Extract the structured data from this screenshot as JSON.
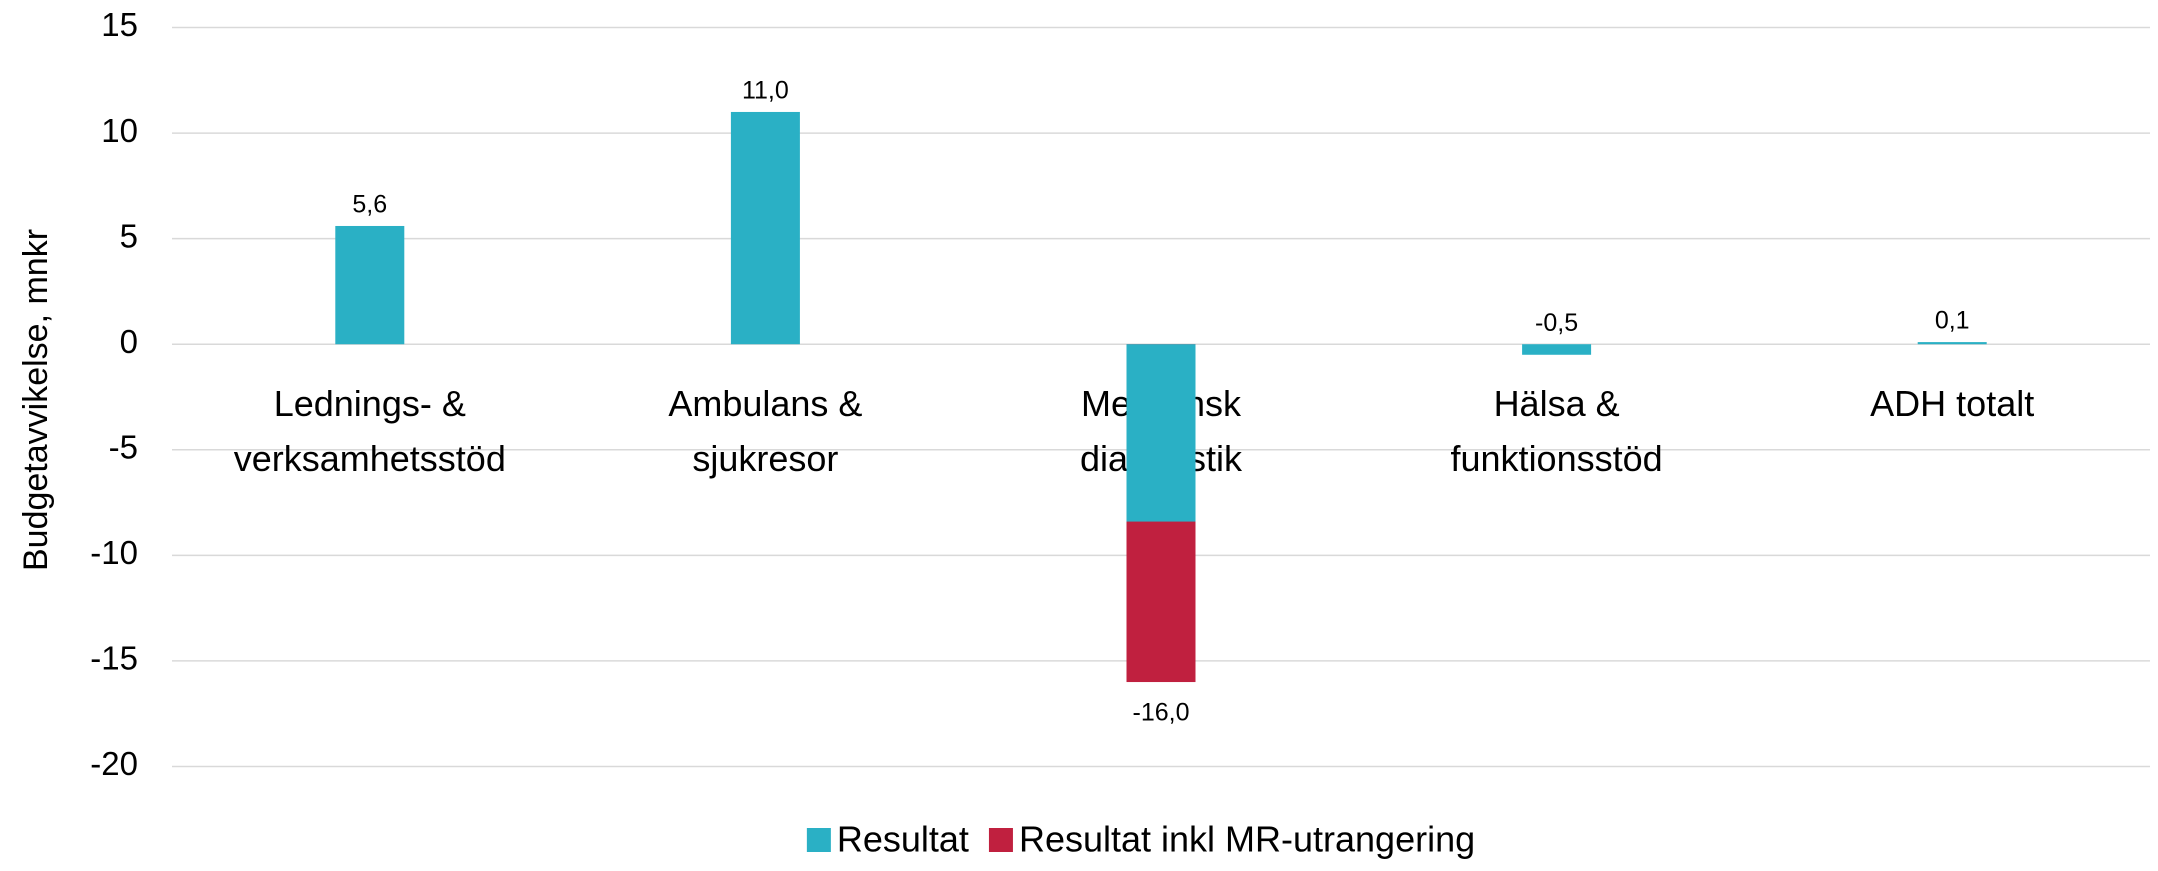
{
  "chart_data": {
    "type": "bar",
    "y_label": "Budgetavvikelse, mnkr",
    "categories": [
      [
        "Lednings- &",
        "verksamhetsstöd"
      ],
      [
        "Ambulans &",
        "sjukresor"
      ],
      [
        "Medicinsk",
        "diagnostik"
      ],
      [
        "Hälsa &",
        "funktionsstöd"
      ],
      [
        "ADH totalt"
      ]
    ],
    "series": [
      {
        "name": "Resultat inkl MR-utrangering",
        "color": "#c0203f",
        "values": [
          null,
          null,
          -16.0,
          null,
          null
        ],
        "value_labels": [
          null,
          null,
          "-16,0",
          null,
          null
        ]
      },
      {
        "name": "Resultat",
        "color": "#2ab0c5",
        "values": [
          5.6,
          11.0,
          -8.4,
          -0.5,
          0.1
        ],
        "value_labels": [
          "5,6",
          "11,0",
          null,
          "-0,5",
          "0,1"
        ]
      }
    ],
    "legend_order": [
      1,
      0
    ],
    "ylim": [
      -20,
      15
    ],
    "yticks": [
      -20,
      -15,
      -10,
      -5,
      0,
      5,
      10,
      15
    ],
    "grid": true
  }
}
